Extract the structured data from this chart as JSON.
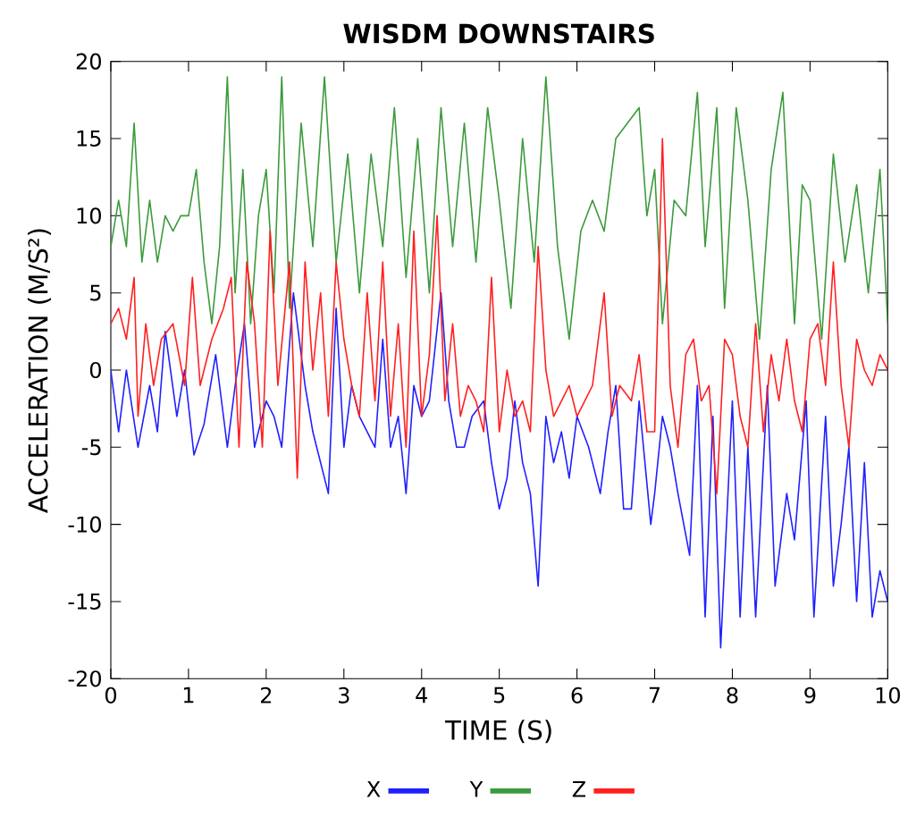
{
  "chart_data": {
    "type": "line",
    "title": "WISDM  DOWNSTAIRS",
    "xlabel": "TIME (S)",
    "ylabel": "ACCELERATION (M/S²)",
    "xlim": [
      0,
      10
    ],
    "ylim": [
      -20,
      20
    ],
    "xticks": [
      0,
      1,
      2,
      3,
      4,
      5,
      6,
      7,
      8,
      9,
      10
    ],
    "yticks": [
      -20,
      -15,
      -10,
      -5,
      0,
      5,
      10,
      15,
      20
    ],
    "legend": "bottom",
    "grid": false,
    "series": [
      {
        "name": "X",
        "color": "#2020ff",
        "x": [
          0,
          0.1,
          0.2,
          0.35,
          0.5,
          0.6,
          0.7,
          0.85,
          0.95,
          1.07,
          1.2,
          1.35,
          1.5,
          1.6,
          1.72,
          1.85,
          2.0,
          2.1,
          2.2,
          2.35,
          2.5,
          2.6,
          2.8,
          2.9,
          3.0,
          3.1,
          3.2,
          3.3,
          3.4,
          3.5,
          3.6,
          3.7,
          3.8,
          3.9,
          4.0,
          4.1,
          4.25,
          4.35,
          4.45,
          4.55,
          4.65,
          4.8,
          4.9,
          5.0,
          5.1,
          5.2,
          5.3,
          5.4,
          5.5,
          5.6,
          5.7,
          5.8,
          5.9,
          6.0,
          6.15,
          6.3,
          6.4,
          6.5,
          6.6,
          6.7,
          6.8,
          6.95,
          7.0,
          7.1,
          7.2,
          7.3,
          7.45,
          7.55,
          7.65,
          7.75,
          7.85,
          8.0,
          8.1,
          8.2,
          8.3,
          8.45,
          8.55,
          8.7,
          8.8,
          8.95,
          9.05,
          9.2,
          9.3,
          9.4,
          9.5,
          9.6,
          9.7,
          9.8,
          9.9,
          10
        ],
        "values": [
          0,
          -4,
          0,
          -5,
          -1,
          -4,
          2.5,
          -3,
          0,
          -5.5,
          -3.5,
          1,
          -5,
          -1,
          3,
          -5,
          -2,
          -3,
          -5,
          5,
          -1,
          -4,
          -8,
          4,
          -5,
          -1,
          -3,
          -4,
          -5,
          2,
          -5,
          -3,
          -8,
          -1,
          -3,
          -2,
          5,
          -2,
          -5,
          -5,
          -3,
          -2,
          -6,
          -9,
          -7,
          -2,
          -6,
          -8,
          -14,
          -3,
          -6,
          -4,
          -7,
          -3,
          -5,
          -8,
          -4,
          -1,
          -9,
          -9,
          -2,
          -10,
          -8,
          -3,
          -5,
          -8,
          -12,
          -1,
          -16,
          -3,
          -18,
          -2,
          -16,
          -5,
          -16,
          -1,
          -14,
          -8,
          -11,
          -2,
          -16,
          -3,
          -14,
          -10,
          -5,
          -15,
          -6,
          -16,
          -13,
          -15
        ]
      },
      {
        "name": "Y",
        "color": "#3c9a3c",
        "x": [
          0,
          0.1,
          0.2,
          0.3,
          0.4,
          0.5,
          0.6,
          0.7,
          0.8,
          0.9,
          1.0,
          1.1,
          1.2,
          1.3,
          1.4,
          1.5,
          1.6,
          1.7,
          1.8,
          1.9,
          2.0,
          2.1,
          2.2,
          2.3,
          2.45,
          2.6,
          2.75,
          2.9,
          3.05,
          3.2,
          3.35,
          3.5,
          3.65,
          3.8,
          3.95,
          4.1,
          4.25,
          4.4,
          4.55,
          4.7,
          4.85,
          5.0,
          5.15,
          5.3,
          5.45,
          5.6,
          5.75,
          5.9,
          6.05,
          6.2,
          6.35,
          6.5,
          6.65,
          6.8,
          6.9,
          7.0,
          7.1,
          7.25,
          7.4,
          7.55,
          7.65,
          7.8,
          7.9,
          8.05,
          8.2,
          8.35,
          8.5,
          8.65,
          8.8,
          8.9,
          9.0,
          9.15,
          9.3,
          9.45,
          9.6,
          9.75,
          9.9,
          10
        ],
        "values": [
          8,
          11,
          8,
          16,
          7,
          11,
          7,
          10,
          9,
          10,
          10,
          13,
          7,
          3,
          8,
          19,
          5,
          13,
          3,
          10,
          13,
          5,
          19,
          4,
          16,
          8,
          19,
          7,
          14,
          5,
          14,
          8,
          17,
          6,
          15,
          5,
          17,
          8,
          16,
          7,
          17,
          11,
          4,
          15,
          7,
          19,
          8,
          2,
          9,
          11,
          9,
          15,
          16,
          17,
          10,
          13,
          3,
          11,
          10,
          18,
          8,
          17,
          4,
          17,
          11,
          2,
          13,
          18,
          3,
          12,
          11,
          2,
          14,
          7,
          12,
          5,
          13,
          3
        ]
      },
      {
        "name": "Z",
        "color": "#ff2020",
        "x": [
          0,
          0.1,
          0.2,
          0.3,
          0.35,
          0.45,
          0.55,
          0.65,
          0.8,
          0.95,
          1.05,
          1.15,
          1.3,
          1.45,
          1.55,
          1.65,
          1.75,
          1.85,
          1.95,
          2.05,
          2.15,
          2.3,
          2.4,
          2.5,
          2.6,
          2.7,
          2.8,
          2.9,
          3.0,
          3.1,
          3.2,
          3.3,
          3.4,
          3.5,
          3.6,
          3.7,
          3.8,
          3.9,
          4.0,
          4.1,
          4.2,
          4.3,
          4.4,
          4.5,
          4.6,
          4.7,
          4.8,
          4.9,
          5.0,
          5.1,
          5.2,
          5.3,
          5.4,
          5.5,
          5.6,
          5.7,
          5.8,
          5.9,
          6.0,
          6.1,
          6.2,
          6.35,
          6.45,
          6.55,
          6.7,
          6.8,
          6.9,
          7.0,
          7.1,
          7.2,
          7.3,
          7.4,
          7.5,
          7.6,
          7.7,
          7.8,
          7.9,
          8.0,
          8.1,
          8.2,
          8.3,
          8.4,
          8.5,
          8.6,
          8.7,
          8.8,
          8.9,
          9.0,
          9.1,
          9.2,
          9.3,
          9.4,
          9.5,
          9.6,
          9.7,
          9.8,
          9.9,
          10
        ],
        "values": [
          3,
          4,
          2,
          6,
          -3,
          3,
          -1,
          2,
          3,
          -1,
          6,
          -1,
          2,
          4,
          6,
          -5,
          7,
          3,
          -5,
          9,
          -1,
          7,
          -7,
          7,
          0,
          5,
          -3,
          7,
          2,
          -1,
          -3,
          5,
          -2,
          7,
          -3,
          3,
          -5,
          9,
          -3,
          1,
          10,
          -2,
          3,
          -3,
          -1,
          -2,
          -4,
          6,
          -4,
          0,
          -3,
          -2,
          -4,
          8,
          0,
          -3,
          -2,
          -1,
          -3,
          -2,
          -1,
          5,
          -3,
          -1,
          -2,
          1,
          -4,
          -4,
          15,
          -1,
          -5,
          1,
          2,
          -2,
          -1,
          -8,
          2,
          1,
          -3,
          -5,
          3,
          -4,
          1,
          -2,
          2,
          -2,
          -4,
          2,
          3,
          -1,
          7,
          -1,
          -5,
          2,
          0,
          -1,
          1,
          0
        ]
      }
    ]
  }
}
